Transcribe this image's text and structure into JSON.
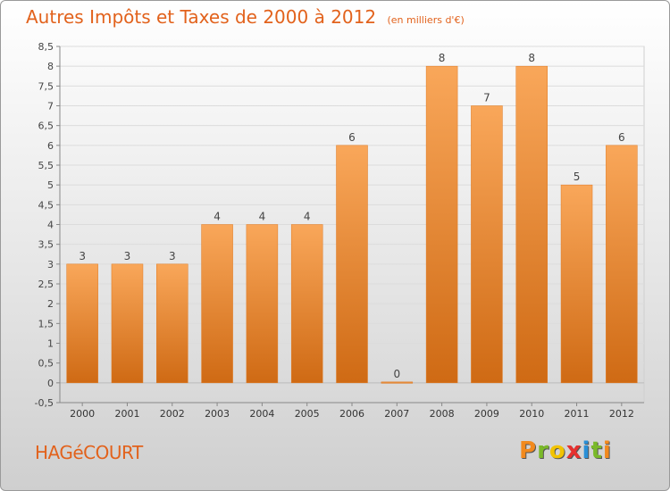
{
  "chart_data": {
    "type": "bar",
    "title": "Autres Impôts et Taxes de 2000 à 2012",
    "subtitle": "(en milliers d'€)",
    "categories": [
      "2000",
      "2001",
      "2002",
      "2003",
      "2004",
      "2005",
      "2006",
      "2007",
      "2008",
      "2009",
      "2010",
      "2011",
      "2012"
    ],
    "values": [
      3,
      3,
      3,
      4,
      4,
      4,
      6,
      0,
      8,
      7,
      8,
      5,
      6
    ],
    "ylim": [
      -0.5,
      8.5
    ],
    "yticks": [
      "-0,5",
      "0",
      "0,5",
      "1",
      "1,5",
      "2",
      "2,5",
      "3",
      "3,5",
      "4",
      "4,5",
      "5",
      "5,5",
      "6",
      "6,5",
      "7",
      "7,5",
      "8",
      "8,5"
    ],
    "grid": true,
    "bar_color": "#f0872d"
  },
  "commune": "HAGéCOURT",
  "brand": [
    "P",
    "r",
    "o",
    "x",
    "i",
    "t",
    "i"
  ],
  "brand_colors": [
    "#f28a1e",
    "#7ab929",
    "#f2c300",
    "#e6312f",
    "#2a8fd6",
    "#7ab929",
    "#f28a1e"
  ]
}
